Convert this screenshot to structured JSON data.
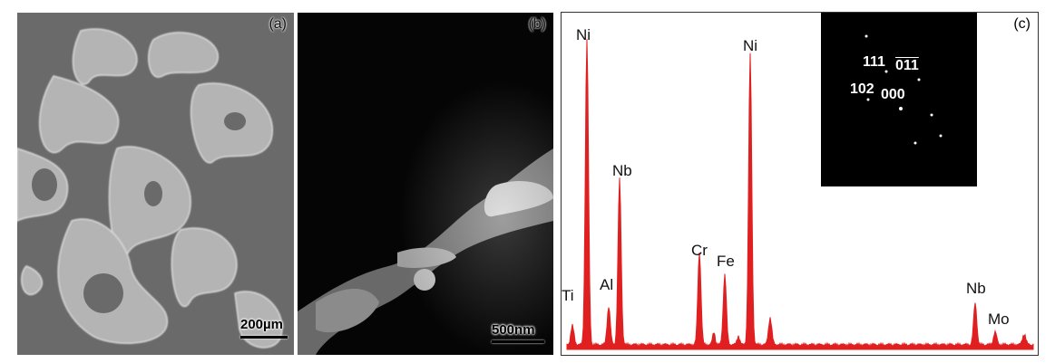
{
  "panels": {
    "a": {
      "label": "(a)",
      "scale": "200µm"
    },
    "b": {
      "label": "(b)",
      "scale": "500nm"
    },
    "c": {
      "label": "(c)"
    }
  },
  "eds_peaks": [
    {
      "element": "Ti",
      "energy": 0.3,
      "intensity": 0.06
    },
    {
      "element": "Al",
      "energy": 1.49,
      "intensity": 0.12
    },
    {
      "element": "Ni",
      "energy": 0.85,
      "intensity": 0.96
    },
    {
      "element": "Nb",
      "energy": 2.17,
      "intensity": 0.52
    },
    {
      "element": "Cr",
      "energy": 5.41,
      "intensity": 0.29
    },
    {
      "element": "Fe",
      "energy": 6.4,
      "intensity": 0.22
    },
    {
      "element": "Ni",
      "energy": 7.47,
      "intensity": 0.91
    },
    {
      "element": "Nb",
      "energy": 16.6,
      "intensity": 0.13
    },
    {
      "element": "Mo",
      "energy": 17.48,
      "intensity": 0.04
    }
  ],
  "diffraction": {
    "spots": [
      "111",
      "01̅1̅",
      "102",
      "000"
    ],
    "labels": {
      "s111": "111",
      "s011": "011",
      "s102": "102",
      "s000": "000"
    }
  },
  "colors": {
    "spectrum": "#e02020"
  }
}
